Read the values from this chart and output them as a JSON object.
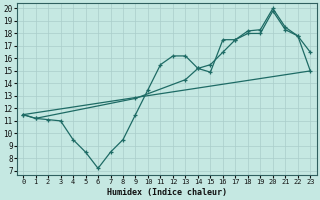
{
  "xlabel": "Humidex (Indice chaleur)",
  "background_color": "#c5e8e2",
  "grid_color": "#aaceca",
  "line_color": "#1e6b65",
  "xlim_min": -0.5,
  "xlim_max": 23.5,
  "ylim_min": 6.7,
  "ylim_max": 20.4,
  "xticks": [
    0,
    1,
    2,
    3,
    4,
    5,
    6,
    7,
    8,
    9,
    10,
    11,
    12,
    13,
    14,
    15,
    16,
    17,
    18,
    19,
    20,
    21,
    22,
    23
  ],
  "yticks": [
    7,
    8,
    9,
    10,
    11,
    12,
    13,
    14,
    15,
    16,
    17,
    18,
    19,
    20
  ],
  "line1_x": [
    0,
    1,
    2,
    3,
    4,
    5,
    6,
    7,
    8,
    9,
    10,
    11,
    12,
    13,
    14,
    15,
    16,
    17,
    18,
    19,
    20,
    21,
    22,
    23
  ],
  "line1_y": [
    11.5,
    11.2,
    11.1,
    11.0,
    9.5,
    8.5,
    7.2,
    8.5,
    9.5,
    11.5,
    13.5,
    15.5,
    16.2,
    16.2,
    15.2,
    14.9,
    17.5,
    17.5,
    18.0,
    18.0,
    19.8,
    18.3,
    17.8,
    16.5
  ],
  "line2_x": [
    0,
    23
  ],
  "line2_y": [
    11.5,
    15.0
  ],
  "line3_x": [
    0,
    1,
    9,
    13,
    14,
    15,
    16,
    17,
    18,
    19,
    20,
    21,
    22,
    23
  ],
  "line3_y": [
    11.5,
    11.2,
    12.8,
    14.3,
    15.2,
    15.5,
    16.5,
    17.5,
    18.2,
    18.3,
    20.0,
    18.5,
    17.8,
    15.0
  ]
}
